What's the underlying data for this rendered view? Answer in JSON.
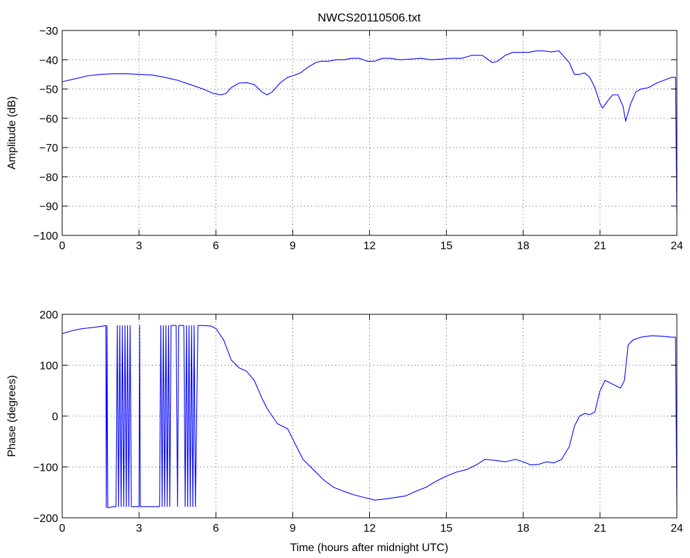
{
  "figure": {
    "title": "NWCS20110506.txt",
    "line_color": "#0000ff",
    "axis_color": "#000000",
    "grid_color": "#555555",
    "background": "#ffffff"
  },
  "chart_data": [
    {
      "type": "line",
      "title": "NWCS20110506.txt",
      "xlabel": "",
      "ylabel": "Amplitude (dB)",
      "xlim": [
        0,
        24
      ],
      "ylim": [
        -100,
        -30
      ],
      "xticks": [
        0,
        3,
        6,
        9,
        12,
        15,
        18,
        21,
        24
      ],
      "yticks": [
        -100,
        -90,
        -80,
        -70,
        -60,
        -50,
        -40,
        -30
      ],
      "grid": true,
      "series": [
        {
          "name": "",
          "color": "#0000ff",
          "x": [
            0,
            0.5,
            1,
            1.5,
            2,
            2.5,
            3,
            3.5,
            4,
            4.5,
            5,
            5.5,
            5.9,
            6.2,
            6.4,
            6.6,
            6.9,
            7.2,
            7.5,
            7.8,
            8.0,
            8.2,
            8.5,
            8.8,
            9.0,
            9.3,
            9.6,
            9.9,
            10.1,
            10.4,
            10.7,
            11.0,
            11.3,
            11.6,
            11.9,
            12.2,
            12.5,
            12.8,
            13.2,
            13.6,
            14.0,
            14.4,
            14.8,
            15.2,
            15.6,
            16.0,
            16.4,
            16.8,
            17.0,
            17.3,
            17.6,
            17.9,
            18.2,
            18.5,
            18.8,
            19.1,
            19.4,
            19.6,
            19.8,
            20.0,
            20.2,
            20.4,
            20.6,
            20.8,
            21.0,
            21.1,
            21.3,
            21.5,
            21.7,
            21.9,
            22.0,
            22.2,
            22.4,
            22.6,
            22.9,
            23.2,
            23.5,
            23.8,
            23.95,
            24.0
          ],
          "y": [
            -47.5,
            -46.5,
            -45.5,
            -45,
            -44.8,
            -44.8,
            -45,
            -45.2,
            -46,
            -47,
            -48.5,
            -50,
            -51.5,
            -52,
            -51.5,
            -49.5,
            -48,
            -47.8,
            -48.5,
            -51,
            -52,
            -51,
            -48,
            -46,
            -45.5,
            -44.5,
            -42.5,
            -41,
            -40.5,
            -40.5,
            -40,
            -40,
            -39.5,
            -39.5,
            -40.5,
            -40.5,
            -39.5,
            -39.5,
            -40,
            -39.8,
            -39.5,
            -40,
            -39.8,
            -39.5,
            -39.5,
            -38.5,
            -38.5,
            -41,
            -40.5,
            -38.5,
            -37.5,
            -37.5,
            -37.5,
            -37,
            -37,
            -37.3,
            -37,
            -39,
            -41,
            -45,
            -45,
            -44.5,
            -46,
            -49.5,
            -55,
            -56.5,
            -54,
            -52,
            -52,
            -56,
            -61,
            -55,
            -51,
            -50,
            -49.5,
            -48,
            -47,
            -46,
            -46,
            -92.5
          ]
        }
      ]
    },
    {
      "type": "line",
      "title": "",
      "xlabel": "Time (hours after midnight UTC)",
      "ylabel": "Phase (degrees)",
      "xlim": [
        0,
        24
      ],
      "ylim": [
        -200,
        200
      ],
      "xticks": [
        0,
        3,
        6,
        9,
        12,
        15,
        18,
        21,
        24
      ],
      "yticks": [
        -200,
        -100,
        0,
        100,
        200
      ],
      "grid": true,
      "series": [
        {
          "name": "",
          "color": "#0000ff",
          "x": [
            0,
            0.4,
            0.8,
            1.2,
            1.6,
            1.7,
            1.72,
            1.75,
            1.78,
            1.8,
            2.0,
            2.1,
            2.15,
            2.2,
            2.25,
            2.3,
            2.35,
            2.4,
            2.45,
            2.5,
            2.55,
            2.6,
            2.65,
            2.7,
            3.0,
            3.02,
            3.05,
            3.1,
            3.5,
            3.8,
            3.85,
            3.9,
            3.95,
            4.0,
            4.05,
            4.1,
            4.15,
            4.2,
            4.25,
            4.3,
            4.35,
            4.4,
            4.45,
            4.5,
            4.55,
            4.6,
            4.65,
            4.7,
            4.75,
            4.8,
            4.85,
            4.9,
            4.95,
            5.0,
            5.05,
            5.1,
            5.15,
            5.2,
            5.3,
            5.5,
            5.8,
            6.0,
            6.3,
            6.6,
            6.9,
            7.2,
            7.5,
            7.8,
            8.0,
            8.4,
            8.8,
            9.1,
            9.4,
            9.8,
            10.2,
            10.6,
            11.0,
            11.4,
            11.8,
            12.2,
            12.6,
            13.0,
            13.4,
            13.8,
            14.2,
            14.6,
            15.0,
            15.4,
            15.8,
            16.2,
            16.5,
            16.9,
            17.3,
            17.7,
            18.0,
            18.3,
            18.6,
            18.9,
            19.2,
            19.5,
            19.8,
            20.0,
            20.2,
            20.4,
            20.6,
            20.8,
            20.9,
            21.0,
            21.2,
            21.4,
            21.6,
            21.8,
            21.95,
            22.1,
            22.3,
            22.6,
            23.0,
            23.4,
            23.8,
            23.95,
            24.0
          ],
          "y": [
            162,
            168,
            172,
            174,
            177,
            178,
            -180,
            178,
            -180,
            -180,
            -178,
            -178,
            178,
            -178,
            178,
            -178,
            178,
            -178,
            178,
            -178,
            178,
            -178,
            178,
            -178,
            -178,
            178,
            -178,
            -178,
            -178,
            -178,
            178,
            -178,
            178,
            -178,
            178,
            -178,
            178,
            -178,
            178,
            178,
            178,
            178,
            178,
            -178,
            178,
            178,
            178,
            178,
            178,
            -178,
            178,
            -178,
            178,
            -178,
            178,
            -178,
            178,
            -178,
            178,
            178,
            177,
            172,
            150,
            110,
            95,
            88,
            70,
            35,
            15,
            -15,
            -25,
            -55,
            -85,
            -105,
            -125,
            -140,
            -148,
            -155,
            -160,
            -165,
            -163,
            -160,
            -157,
            -148,
            -140,
            -128,
            -118,
            -110,
            -105,
            -95,
            -85,
            -87,
            -90,
            -85,
            -90,
            -96,
            -95,
            -90,
            -92,
            -85,
            -60,
            -20,
            0,
            5,
            3,
            8,
            30,
            50,
            70,
            65,
            60,
            55,
            70,
            140,
            150,
            155,
            158,
            157,
            155,
            155,
            -178
          ]
        }
      ]
    }
  ]
}
